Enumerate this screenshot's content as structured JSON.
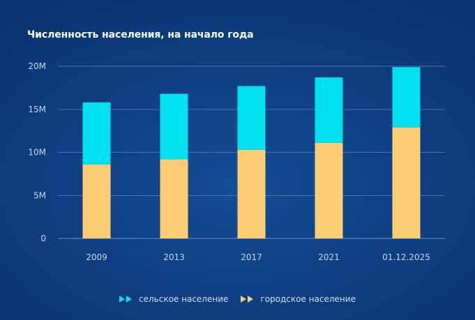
{
  "colors": {
    "urban": "#fdcd75",
    "rural": "#00e0f0",
    "grid": "#4d73aa",
    "tick": "#cdd9ea"
  },
  "legend": {
    "items": [
      {
        "label": "сельское население",
        "color": "#00e0f0",
        "icon": "double-triangle-icon"
      },
      {
        "label": "городское население",
        "color": "#fdcd75",
        "icon": "double-triangle-icon"
      }
    ]
  },
  "chart_data": {
    "type": "bar",
    "stacked": true,
    "title": "Численность населения, на начало года",
    "xlabel": "",
    "ylabel": "",
    "categories": [
      "2009",
      "2013",
      "2017",
      "2021",
      "01.12.2025"
    ],
    "series": [
      {
        "name": "городское население",
        "values": [
          8.6,
          9.2,
          10.3,
          11.1,
          12.9
        ]
      },
      {
        "name": "сельское население",
        "values": [
          7.2,
          7.6,
          7.4,
          7.6,
          7.0
        ]
      }
    ],
    "ylim": [
      0,
      20
    ],
    "yticks": [
      0,
      5,
      10,
      15,
      20
    ],
    "ytick_labels": [
      "0",
      "5M",
      "10M",
      "15M",
      "20M"
    ],
    "grid": true,
    "legend_position": "bottom-center"
  }
}
